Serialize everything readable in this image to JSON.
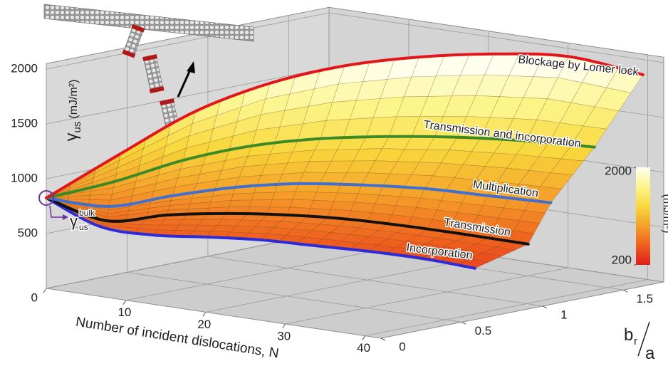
{
  "chart_data": {
    "type": "surface3d",
    "xlabel": "Number of incident dislocations, N",
    "ylabel": {
      "b": "b",
      "sub": "r",
      "over": "a"
    },
    "zlabel": {
      "symbol": "γ",
      "sub": "us",
      "unit": "(mJ/m²)"
    },
    "x": [
      0,
      5,
      10,
      15,
      20,
      25,
      30,
      35,
      40
    ],
    "xlim": [
      0,
      42
    ],
    "xticks": [
      0,
      10,
      20,
      30,
      40
    ],
    "ylim": [
      0,
      1.75
    ],
    "yticks": [
      0,
      0.5,
      1,
      1.5
    ],
    "zlim": [
      0,
      2050
    ],
    "zticks": [
      0,
      500,
      1000,
      1500,
      2000
    ],
    "grid": true,
    "series": [
      {
        "name": "Incorporation",
        "color": "#2d2ad8",
        "label_color": "#2d2ad8",
        "values": [
          825,
          594,
          545,
          556,
          559,
          536,
          514,
          479,
          417
        ],
        "br_a": [
          0,
          0.085,
          0.17,
          0.255,
          0.34,
          0.425,
          0.51,
          0.595,
          0.68
        ]
      },
      {
        "name": "Transmission",
        "color": "#111111",
        "label_color": "#111111",
        "values": [
          825,
          634,
          703,
          734,
          738,
          717,
          669,
          608,
          541
        ],
        "br_a": [
          0,
          0.126,
          0.253,
          0.379,
          0.505,
          0.631,
          0.758,
          0.884,
          1.01
        ]
      },
      {
        "name": "Multiplication",
        "color": "#3f6fd0",
        "label_color": "#2f5fc8",
        "values": [
          825,
          759,
          869,
          958,
          1003,
          1003,
          982,
          930,
          877
        ],
        "br_a": [
          0,
          0.144,
          0.288,
          0.431,
          0.575,
          0.719,
          0.863,
          1.006,
          1.15
        ]
      },
      {
        "name": "Transmission and incorporation",
        "color": "#3c8a25",
        "label_color": "#2f7f1f",
        "values": [
          825,
          977,
          1173,
          1306,
          1373,
          1395,
          1391,
          1360,
          1305
        ],
        "br_a": [
          0,
          0.178,
          0.355,
          0.533,
          0.71,
          0.888,
          1.065,
          1.243,
          1.42
        ]
      },
      {
        "name": "Blockage by Lomer lock",
        "color": "#e3161b",
        "label_color": "#e3161b",
        "values": [
          825,
          1221,
          1597,
          1844,
          1994,
          2065,
          2084,
          2052,
          1877
        ],
        "br_a": [
          0,
          0.215,
          0.43,
          0.645,
          0.86,
          1.075,
          1.29,
          1.505,
          1.72
        ]
      }
    ],
    "colorbar": {
      "lim": [
        200,
        2000
      ],
      "ticks": [
        200,
        2000
      ],
      "label": "(mJ/m²)",
      "colors": [
        "#e01d1b",
        "#ef5f1e",
        "#f5a02a",
        "#f8d83c",
        "#fcf58a",
        "#fffff0"
      ]
    },
    "annotation": {
      "symbol": "γ",
      "sub": "us",
      "sup": "bulk"
    }
  }
}
